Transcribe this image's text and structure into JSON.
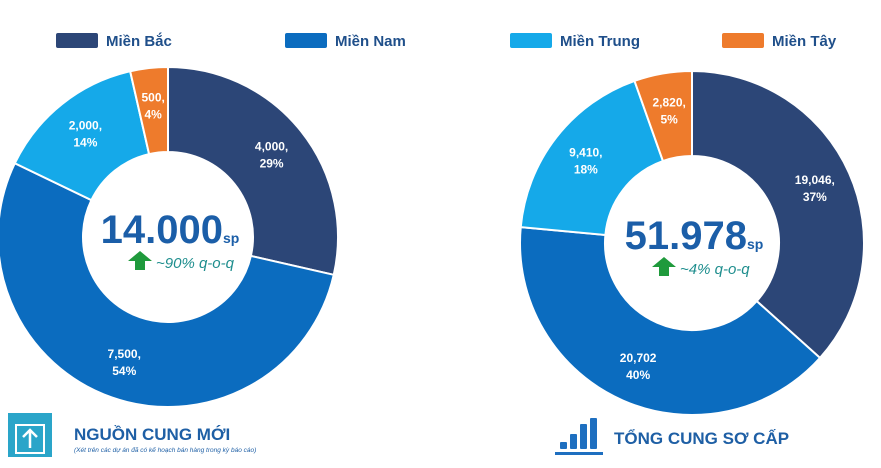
{
  "legend": [
    {
      "name": "Miền Bắc",
      "color": "#2c4677"
    },
    {
      "name": "Miền Nam",
      "color": "#0b6cbf"
    },
    {
      "name": "Miền Trung",
      "color": "#15a9e9"
    },
    {
      "name": "Miền Tây",
      "color": "#ee7b2c"
    }
  ],
  "chart_data": [
    {
      "type": "pie",
      "title": "NGUỒN CUNG MỚI",
      "subtitle": "(Xét trên các dự án đã có kế hoạch bán hàng trong kỳ báo cáo)",
      "total": "14.000",
      "unit": "sp",
      "change": "~90% q-o-q",
      "values": [
        4000,
        7500,
        2000,
        500
      ],
      "value_labels": [
        "4,000,",
        "7,500,",
        "2,000,",
        "500,"
      ],
      "share_labels": [
        "29%",
        "54%",
        "14%",
        "4%"
      ]
    },
    {
      "type": "pie",
      "title": "TỔNG CUNG SƠ CẤP",
      "total": "51.978",
      "unit": "sp",
      "change": "~4% q-o-q",
      "values": [
        19046,
        20702,
        9410,
        2820
      ],
      "value_labels": [
        "19,046,",
        "20,702",
        "9,410,",
        "2,820,"
      ],
      "share_labels": [
        "37%",
        "40%",
        "18%",
        "5%"
      ]
    }
  ]
}
